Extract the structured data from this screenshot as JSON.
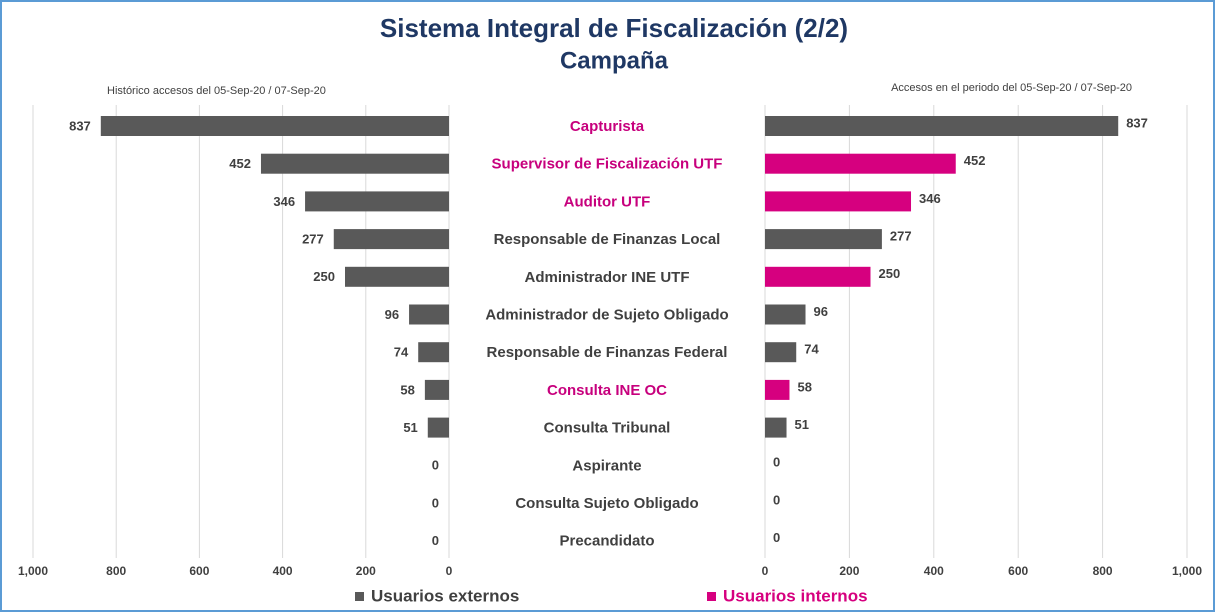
{
  "chart_data": {
    "type": "butterfly",
    "title": "Sistema Integral de Fiscalización (2/2)",
    "subtitle": "Campaña",
    "categories": [
      "Capturista",
      "Supervisor de Fiscalización UTF",
      "Auditor UTF",
      "Responsable de Finanzas Local",
      "Administrador INE UTF",
      "Administrador de Sujeto Obligado",
      "Responsable de Finanzas Federal",
      "Consulta INE OC",
      "Consulta Tribunal",
      "Aspirante",
      "Consulta Sujeto Obligado",
      "Precandidato"
    ],
    "category_colors": [
      "#c7007d",
      "#c7007d",
      "#c7007d",
      "#404040",
      "#404040",
      "#404040",
      "#404040",
      "#c7007d",
      "#404040",
      "#404040",
      "#404040",
      "#404040"
    ],
    "left": {
      "title": "Histórico accesos del 05-Sep-20 / 07-Sep-20",
      "values": [
        837,
        452,
        346,
        277,
        250,
        96,
        74,
        58,
        51,
        0,
        0,
        0
      ],
      "color": "#595959",
      "xlim": [
        0,
        1000
      ],
      "xticks": [
        0,
        200,
        400,
        600,
        800,
        {
          "value": 1000,
          "label": "1,000"
        }
      ]
    },
    "right": {
      "title": "Accesos en el periodo del 05-Sep-20 / 07-Sep-20",
      "values": [
        837,
        452,
        346,
        277,
        250,
        96,
        74,
        58,
        51,
        0,
        0,
        0
      ],
      "colors": [
        "#595959",
        "#d6007f",
        "#d6007f",
        "#595959",
        "#d6007f",
        "#595959",
        "#595959",
        "#d6007f",
        "#595959",
        "#595959",
        "#595959",
        "#595959"
      ],
      "xlim": [
        0,
        1000
      ],
      "xticks": [
        0,
        200,
        400,
        600,
        800,
        {
          "value": 1000,
          "label": "1,000"
        }
      ]
    },
    "legend": [
      {
        "name": "Usuarios externos",
        "color": "#595959"
      },
      {
        "name": "Usuarios internos",
        "color": "#d6007f"
      }
    ]
  }
}
